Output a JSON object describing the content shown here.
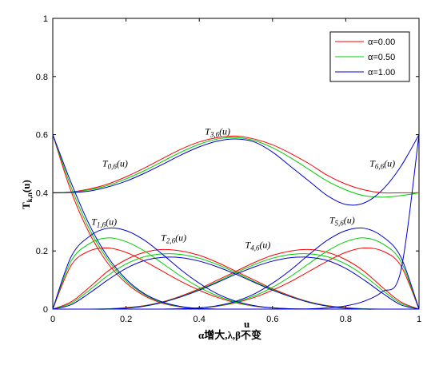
{
  "chart_data": {
    "type": "line",
    "xlabel": "α增大,λ,β不变",
    "xlabel_superscript": "u",
    "ylabel": "T",
    "ylabel_subscript": "k,n",
    "ylabel_suffix": "(u)",
    "xlim": [
      0,
      1
    ],
    "ylim": [
      0,
      1
    ],
    "xticks": [
      "0",
      "0.2",
      "0.4",
      "0.6",
      "0.8",
      "1"
    ],
    "yticks": [
      "0",
      "0.2",
      "0.4",
      "0.6",
      "0.8",
      "1"
    ],
    "legend_position": "top-right",
    "grid": false,
    "x": [
      0,
      0.05,
      0.1,
      0.15,
      0.2,
      0.25,
      0.3,
      0.35,
      0.4,
      0.45,
      0.5,
      0.55,
      0.6,
      0.65,
      0.7,
      0.75,
      0.8,
      0.85,
      0.9,
      0.95,
      1
    ],
    "series": [
      {
        "name": "α=0.00",
        "color": "#ff0000",
        "curves": [
          {
            "name": "T0,6",
            "values": [
              0.6,
              0.405,
              0.261,
              0.158,
              0.09,
              0.046,
              0.02,
              0.007,
              0.002,
              0.0,
              0,
              0,
              0,
              0,
              0,
              0,
              0,
              0,
              0,
              0,
              0
            ]
          },
          {
            "name": "T1,6",
            "values": [
              0,
              0.15,
              0.2,
              0.21,
              0.195,
              0.165,
              0.13,
              0.095,
              0.065,
              0.04,
              0.022,
              0.01,
              0.004,
              0.001,
              0,
              0,
              0,
              0,
              0,
              0,
              0
            ]
          },
          {
            "name": "T2,6",
            "values": [
              0,
              0.025,
              0.075,
              0.13,
              0.17,
              0.195,
              0.205,
              0.2,
              0.185,
              0.16,
              0.13,
              0.1,
              0.07,
              0.045,
              0.025,
              0.012,
              0.005,
              0.001,
              0,
              0,
              0
            ]
          },
          {
            "name": "T3,6",
            "values": [
              0.4,
              0.403,
              0.413,
              0.43,
              0.455,
              0.485,
              0.518,
              0.55,
              0.575,
              0.59,
              0.595,
              0.585,
              0.565,
              0.535,
              0.5,
              0.46,
              0.43,
              0.41,
              0.4,
              0.4,
              0.4
            ]
          },
          {
            "name": "T4,6",
            "values": [
              0,
              0,
              0,
              0.001,
              0.005,
              0.012,
              0.025,
              0.045,
              0.07,
              0.1,
              0.13,
              0.16,
              0.185,
              0.2,
              0.205,
              0.195,
              0.17,
              0.13,
              0.075,
              0.025,
              0
            ]
          },
          {
            "name": "T5,6",
            "values": [
              0,
              0,
              0,
              0,
              0,
              0,
              0,
              0.001,
              0.004,
              0.01,
              0.022,
              0.04,
              0.065,
              0.095,
              0.13,
              0.165,
              0.195,
              0.21,
              0.2,
              0.15,
              0
            ]
          },
          {
            "name": "T6,6",
            "values": [
              0,
              0,
              0,
              0,
              0,
              0,
              0,
              0,
              0,
              0,
              0,
              0,
              0,
              0,
              0,
              0,
              0,
              0,
              0,
              0,
              0
            ]
          }
        ]
      },
      {
        "name": "α=0.50",
        "color": "#00cc00",
        "curves": [
          {
            "name": "T0,6",
            "values": [
              0.6,
              0.42,
              0.275,
              0.17,
              0.097,
              0.05,
              0.022,
              0.008,
              0.002,
              0.0,
              0,
              0,
              0,
              0,
              0,
              0,
              0,
              0,
              0,
              0,
              0
            ]
          },
          {
            "name": "T1,6",
            "values": [
              0,
              0.165,
              0.225,
              0.245,
              0.232,
              0.2,
              0.157,
              0.113,
              0.075,
              0.045,
              0.024,
              0.011,
              0.004,
              0.001,
              0,
              0,
              0,
              0,
              0,
              0,
              0
            ]
          },
          {
            "name": "T2,6",
            "values": [
              0,
              0.02,
              0.065,
              0.115,
              0.155,
              0.18,
              0.19,
              0.188,
              0.175,
              0.153,
              0.125,
              0.095,
              0.067,
              0.043,
              0.024,
              0.011,
              0.004,
              0.001,
              0,
              0,
              0
            ]
          },
          {
            "name": "T3,6",
            "values": [
              0.4,
              0.402,
              0.41,
              0.425,
              0.448,
              0.476,
              0.508,
              0.54,
              0.567,
              0.585,
              0.59,
              0.58,
              0.555,
              0.52,
              0.48,
              0.44,
              0.41,
              0.39,
              0.385,
              0.39,
              0.4
            ]
          },
          {
            "name": "T4,6",
            "values": [
              0,
              0,
              0,
              0.001,
              0.004,
              0.011,
              0.024,
              0.043,
              0.067,
              0.095,
              0.125,
              0.153,
              0.175,
              0.188,
              0.19,
              0.18,
              0.155,
              0.115,
              0.065,
              0.02,
              0
            ]
          },
          {
            "name": "T5,6",
            "values": [
              0,
              0,
              0,
              0,
              0,
              0,
              0,
              0.001,
              0.004,
              0.011,
              0.024,
              0.045,
              0.075,
              0.113,
              0.157,
              0.2,
              0.232,
              0.245,
              0.225,
              0.165,
              0
            ]
          },
          {
            "name": "T6,6",
            "values": [
              0,
              0,
              0,
              0,
              0,
              0,
              0,
              0,
              0,
              0,
              0,
              0,
              0,
              0,
              0,
              0,
              0,
              0,
              0,
              0,
              0
            ]
          }
        ]
      },
      {
        "name": "α=1.00",
        "color": "#0000cc",
        "curves": [
          {
            "name": "T0,6",
            "values": [
              0.6,
              0.435,
              0.29,
              0.18,
              0.103,
              0.053,
              0.024,
              0.009,
              0.002,
              0.0,
              0,
              0,
              0,
              0,
              0,
              0,
              0,
              0,
              0,
              0,
              0
            ]
          },
          {
            "name": "T1,6",
            "values": [
              0,
              0.18,
              0.25,
              0.278,
              0.27,
              0.237,
              0.188,
              0.135,
              0.089,
              0.052,
              0.027,
              0.012,
              0.004,
              0.001,
              0,
              0,
              0,
              0,
              0,
              0,
              0
            ]
          },
          {
            "name": "T2,6",
            "values": [
              0,
              0.015,
              0.055,
              0.1,
              0.14,
              0.167,
              0.178,
              0.177,
              0.165,
              0.145,
              0.12,
              0.092,
              0.065,
              0.042,
              0.023,
              0.01,
              0.003,
              0.0,
              0,
              0,
              0
            ]
          },
          {
            "name": "T3,6",
            "values": [
              0.4,
              0.401,
              0.406,
              0.42,
              0.44,
              0.467,
              0.498,
              0.53,
              0.558,
              0.578,
              0.585,
              0.575,
              0.54,
              0.49,
              0.44,
              0.39,
              0.36,
              0.365,
              0.41,
              0.49,
              0.6
            ]
          },
          {
            "name": "T4,6",
            "values": [
              0,
              0,
              0,
              0.0,
              0.003,
              0.01,
              0.023,
              0.042,
              0.065,
              0.092,
              0.12,
              0.145,
              0.165,
              0.177,
              0.178,
              0.167,
              0.14,
              0.1,
              0.055,
              0.015,
              0
            ]
          },
          {
            "name": "T5,6",
            "values": [
              0,
              0,
              0,
              0,
              0,
              0,
              0,
              0.001,
              0.004,
              0.012,
              0.027,
              0.052,
              0.089,
              0.135,
              0.188,
              0.237,
              0.27,
              0.278,
              0.25,
              0.18,
              0
            ]
          },
          {
            "name": "T6,6",
            "values": [
              0,
              0,
              0,
              0,
              0,
              0,
              0,
              0,
              0,
              0,
              0,
              0,
              0,
              0.0,
              0.001,
              0.004,
              0.011,
              0.027,
              0.06,
              0.13,
              0.6
            ]
          }
        ]
      }
    ],
    "annotations": [
      {
        "text": "T0,6(u)",
        "x": 0.17,
        "y": 0.49
      },
      {
        "text": "T1,6(u)",
        "x": 0.14,
        "y": 0.29
      },
      {
        "text": "T2,6(u)",
        "x": 0.33,
        "y": 0.235
      },
      {
        "text": "T3,6(u)",
        "x": 0.45,
        "y": 0.6
      },
      {
        "text": "T4,6(u)",
        "x": 0.56,
        "y": 0.21
      },
      {
        "text": "T5,6(u)",
        "x": 0.79,
        "y": 0.295
      },
      {
        "text": "T6,6(u)",
        "x": 0.9,
        "y": 0.49
      }
    ]
  }
}
